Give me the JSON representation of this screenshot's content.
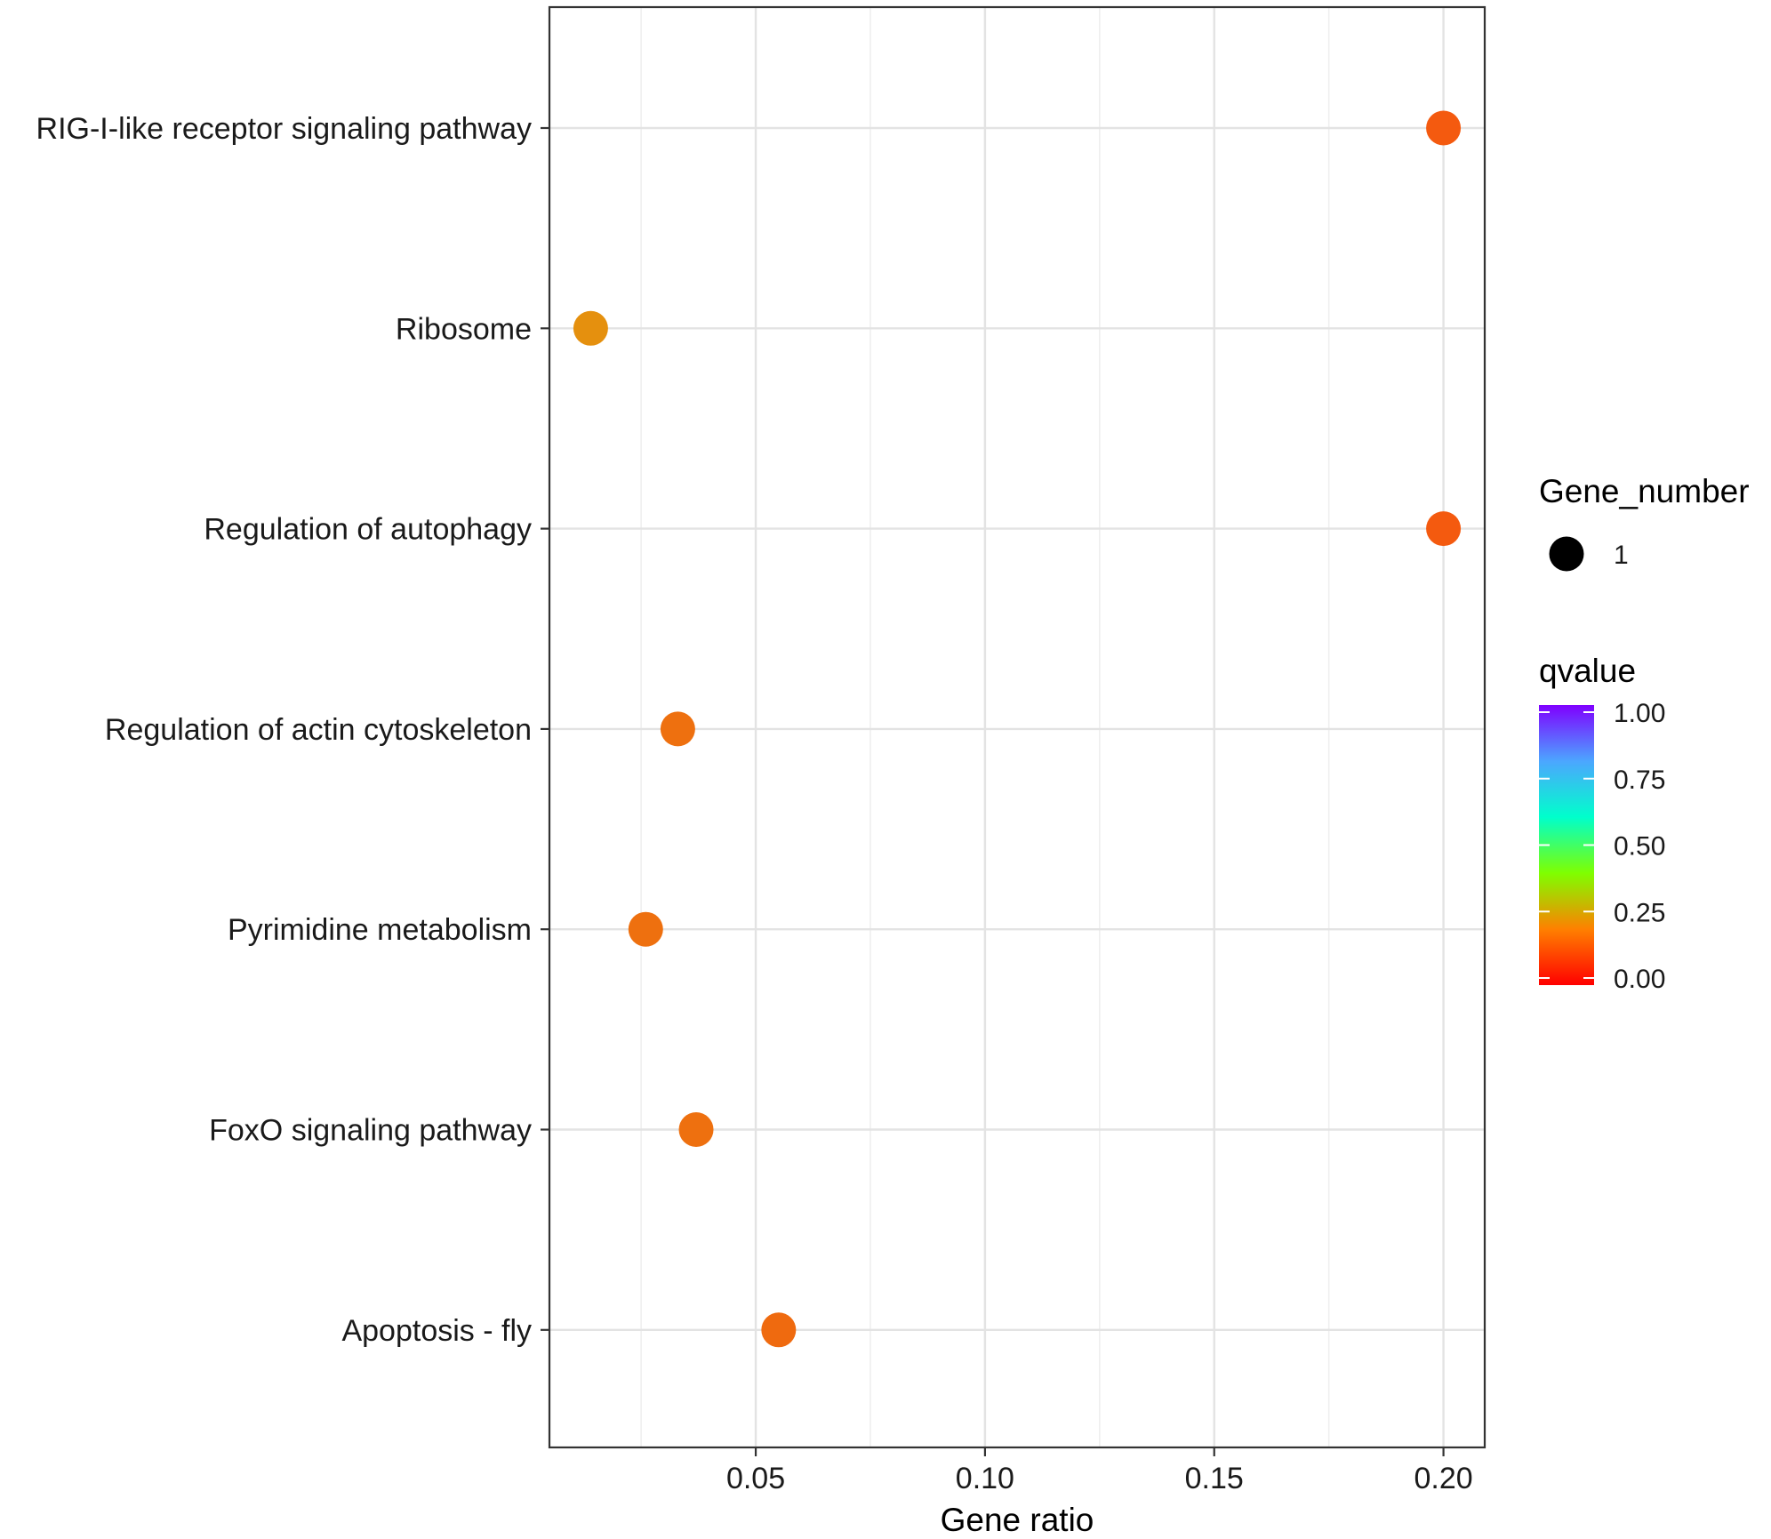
{
  "chart_data": {
    "type": "scatter",
    "title": "",
    "xlabel": "Gene ratio",
    "ylabel": "",
    "xlim": [
      0.005,
      0.209
    ],
    "xticks": [
      {
        "value": 0.05,
        "label": "0.05"
      },
      {
        "value": 0.1,
        "label": "0.10"
      },
      {
        "value": 0.15,
        "label": "0.15"
      },
      {
        "value": 0.2,
        "label": "0.20"
      }
    ],
    "x_minor_gridlines": [
      0.025,
      0.075,
      0.125,
      0.175
    ],
    "grid": true,
    "categories": [
      "RIG-I-like receptor signaling pathway",
      "Ribosome",
      "Regulation of autophagy",
      "Regulation of actin cytoskeleton",
      "Pyrimidine metabolism",
      "FoxO signaling pathway",
      "Apoptosis - fly"
    ],
    "points": [
      {
        "pathway": "RIG-I-like receptor signaling pathway",
        "gene_ratio": 0.2,
        "qvalue": 0.06,
        "gene_number": 1,
        "color": "#f45a0f"
      },
      {
        "pathway": "Ribosome",
        "gene_ratio": 0.014,
        "qvalue": 0.17,
        "gene_number": 1,
        "color": "#e5900e"
      },
      {
        "pathway": "Regulation of autophagy",
        "gene_ratio": 0.2,
        "qvalue": 0.06,
        "gene_number": 1,
        "color": "#f45a0f"
      },
      {
        "pathway": "Regulation of actin cytoskeleton",
        "gene_ratio": 0.033,
        "qvalue": 0.1,
        "gene_number": 1,
        "color": "#ee700f"
      },
      {
        "pathway": "Pyrimidine metabolism",
        "gene_ratio": 0.026,
        "qvalue": 0.1,
        "gene_number": 1,
        "color": "#ee700f"
      },
      {
        "pathway": "FoxO signaling pathway",
        "gene_ratio": 0.037,
        "qvalue": 0.1,
        "gene_number": 1,
        "color": "#ee700f"
      },
      {
        "pathway": "Apoptosis - fly",
        "gene_ratio": 0.055,
        "qvalue": 0.09,
        "gene_number": 1,
        "color": "#ef6a0f"
      }
    ],
    "legend": {
      "placement": "right",
      "size_title": "Gene_number",
      "size_entries": [
        {
          "label": "1",
          "color": "#000000"
        }
      ],
      "color_title": "qvalue",
      "color_range": [
        0.0,
        1.0
      ],
      "color_ticks": [
        {
          "value": 1.0,
          "label": "1.00"
        },
        {
          "value": 0.75,
          "label": "0.75"
        },
        {
          "value": 0.5,
          "label": "0.50"
        },
        {
          "value": 0.25,
          "label": "0.25"
        },
        {
          "value": 0.0,
          "label": "0.00"
        }
      ],
      "color_stops": [
        "#ff0000",
        "#ff8000",
        "#7fff00",
        "#00ffcc",
        "#4ca6ff",
        "#7f00ff"
      ]
    }
  }
}
